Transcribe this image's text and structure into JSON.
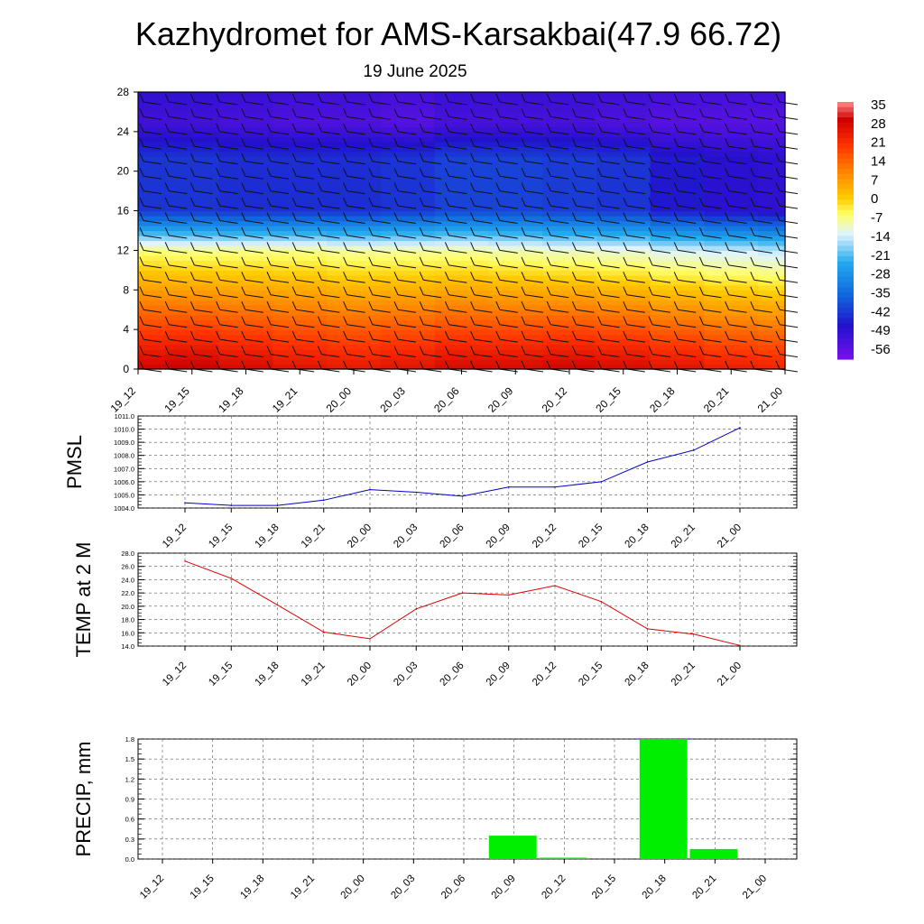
{
  "header": {
    "title": "Kazhydromet for AMS-Karsakbai(47.9 66.72)",
    "date": "19 June 2025"
  },
  "colors": {
    "pmsl_line": "#0000cc",
    "temp_line": "#dd0000",
    "precip_bar": "#00ee00",
    "palette_stops": [
      "#ff8c8c",
      "#cc0000",
      "#ff3300",
      "#ff8800",
      "#ffcc00",
      "#ffff66",
      "#e0f4ff",
      "#22aaee",
      "#1166dd",
      "#2211cc",
      "#7711ee"
    ]
  },
  "chart_data": [
    {
      "type": "heatmap",
      "title": "",
      "x_ticks": [
        "19_12",
        "19_15",
        "19_18",
        "19_21",
        "20_00",
        "20_03",
        "20_06",
        "20_09",
        "20_12",
        "20_15",
        "20_18",
        "20_21",
        "21_00"
      ],
      "y_ticks": [
        0,
        4,
        8,
        12,
        16,
        20,
        24,
        28
      ],
      "ylim": [
        0,
        28
      ],
      "colorbar": {
        "labels": [
          35,
          28,
          21,
          14,
          7,
          0,
          -7,
          -14,
          -21,
          -28,
          -35,
          -42,
          -49,
          -56
        ],
        "range": [
          -63,
          38
        ]
      },
      "columns": [
        {
          "x": "19_12",
          "t0": 30,
          "t12": -7,
          "tmid": -44,
          "ttop": -55
        },
        {
          "x": "19_15",
          "t0": 31,
          "t12": -8,
          "tmid": -44,
          "ttop": -55
        },
        {
          "x": "19_18",
          "t0": 29,
          "t12": -8,
          "tmid": -45,
          "ttop": -56
        },
        {
          "x": "19_21",
          "t0": 27,
          "t12": -8,
          "tmid": -45,
          "ttop": -57
        },
        {
          "x": "20_00",
          "t0": 26,
          "t12": -9,
          "tmid": -45,
          "ttop": -57
        },
        {
          "x": "20_03",
          "t0": 27,
          "t12": -9,
          "tmid": -44,
          "ttop": -58
        },
        {
          "x": "20_06",
          "t0": 29,
          "t12": -9,
          "tmid": -42,
          "ttop": -56
        },
        {
          "x": "20_09",
          "t0": 29,
          "t12": -10,
          "tmid": -42,
          "ttop": -56
        },
        {
          "x": "20_12",
          "t0": 30,
          "t12": -11,
          "tmid": -43,
          "ttop": -56
        },
        {
          "x": "20_15",
          "t0": 29,
          "t12": -12,
          "tmid": -44,
          "ttop": -57
        },
        {
          "x": "20_18",
          "t0": 27,
          "t12": -14,
          "tmid": -48,
          "ttop": -58
        },
        {
          "x": "20_21",
          "t0": 25,
          "t12": -15,
          "tmid": -50,
          "ttop": -58
        },
        {
          "x": "21_00",
          "t0": 24,
          "t12": -16,
          "tmid": -51,
          "ttop": -58
        }
      ]
    },
    {
      "type": "line",
      "ylabel": "PMSL",
      "x": [
        "19_12",
        "19_15",
        "19_18",
        "19_21",
        "20_00",
        "20_03",
        "20_06",
        "20_09",
        "20_12",
        "20_15",
        "20_18",
        "20_21",
        "21_00"
      ],
      "series": [
        {
          "values": [
            1004.4,
            1004.2,
            1004.2,
            1004.6,
            1005.4,
            1005.2,
            1004.9,
            1005.6,
            1005.6,
            1006.0,
            1007.5,
            1008.4,
            1010.1
          ]
        }
      ],
      "ylim": [
        1004.0,
        1011.0
      ],
      "y_ticks": [
        "1004.0",
        "1005.0",
        "1006.0",
        "1007.0",
        "1008.0",
        "1009.0",
        "1010.0",
        "1011.0"
      ],
      "grid": true
    },
    {
      "type": "line",
      "ylabel": "TEMP at 2 M",
      "x": [
        "19_12",
        "19_15",
        "19_18",
        "19_21",
        "20_00",
        "20_03",
        "20_06",
        "20_09",
        "20_12",
        "20_15",
        "20_18",
        "20_21",
        "21_00"
      ],
      "series": [
        {
          "values": [
            26.8,
            24.2,
            20.2,
            16.1,
            15.1,
            19.6,
            22.0,
            21.7,
            23.1,
            20.7,
            16.6,
            15.8,
            14.1
          ]
        }
      ],
      "ylim": [
        14.0,
        28.0
      ],
      "y_ticks": [
        "14.0",
        "16.0",
        "18.0",
        "20.0",
        "22.0",
        "24.0",
        "26.0",
        "28.0"
      ],
      "grid": true
    },
    {
      "type": "bar",
      "ylabel": "PRECIP, mm",
      "categories": [
        "19_12",
        "19_15",
        "19_18",
        "19_21",
        "20_00",
        "20_03",
        "20_06",
        "20_09",
        "20_12",
        "20_15",
        "20_18",
        "20_21",
        "21_00"
      ],
      "values": [
        0,
        0,
        0,
        0,
        0,
        0,
        0,
        0.35,
        0.02,
        0,
        1.8,
        0.15,
        0
      ],
      "ylim": [
        0,
        1.8
      ],
      "y_ticks": [
        "0.0",
        "0.3",
        "0.6",
        "0.9",
        "1.2",
        "1.5",
        "1.8"
      ],
      "grid": true
    }
  ]
}
